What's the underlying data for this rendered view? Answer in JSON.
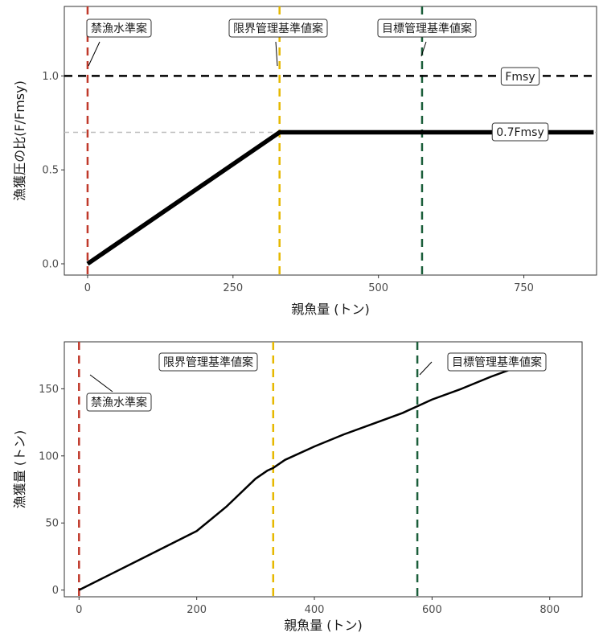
{
  "chart_data": [
    {
      "type": "line",
      "xlabel": "親魚量 (トン)",
      "ylabel": "漁獲圧の比(F/Fmsy)",
      "xlim": [
        -40,
        875
      ],
      "ylim": [
        -0.06,
        1.37
      ],
      "x_ticks": [
        0,
        250,
        500,
        750
      ],
      "y_ticks": [
        0.0,
        0.5,
        1.0
      ],
      "x_tick_labels": [
        "0",
        "250",
        "500",
        "750"
      ],
      "y_tick_labels": [
        "0.0",
        "0.5",
        "1.0"
      ],
      "grid": false,
      "series": [
        {
          "x": [
            0,
            330,
            870
          ],
          "y": [
            0.0,
            0.7,
            0.7
          ],
          "color": "#000000"
        }
      ],
      "reference_lines": [
        {
          "axis": "x",
          "value": 0,
          "color": "#c0392b",
          "label": "禁漁水準案"
        },
        {
          "axis": "x",
          "value": 330,
          "color": "#e6b800",
          "label": "限界管理基準値案"
        },
        {
          "axis": "x",
          "value": 575,
          "color": "#1b5e3a",
          "label": "目標管理基準値案"
        },
        {
          "axis": "y",
          "value": 1.0,
          "color": "#000000",
          "label": "Fmsy"
        },
        {
          "axis": "y",
          "value": 0.7,
          "color": "#bbbbbb",
          "label": "0.7Fmsy"
        }
      ]
    },
    {
      "type": "line",
      "xlabel": "親魚量 (トン)",
      "ylabel": "漁獲量 (トン)",
      "xlim": [
        -25,
        855
      ],
      "ylim": [
        -5,
        185
      ],
      "x_ticks": [
        0,
        200,
        400,
        600,
        800
      ],
      "y_ticks": [
        0,
        50,
        100,
        150
      ],
      "x_tick_labels": [
        "0",
        "200",
        "400",
        "600",
        "800"
      ],
      "y_tick_labels": [
        "0",
        "50",
        "100",
        "150"
      ],
      "grid": false,
      "series": [
        {
          "x": [
            0,
            50,
            100,
            150,
            200,
            250,
            300,
            320,
            330,
            350,
            400,
            450,
            500,
            550,
            575,
            600,
            650,
            700,
            750
          ],
          "y": [
            0,
            11,
            22,
            33,
            44,
            62,
            83,
            89,
            91,
            97,
            107,
            116,
            124,
            132,
            137,
            142,
            150,
            159,
            167
          ],
          "color": "#000000"
        }
      ],
      "reference_lines": [
        {
          "axis": "x",
          "value": 0,
          "color": "#c0392b",
          "label": "禁漁水準案"
        },
        {
          "axis": "x",
          "value": 330,
          "color": "#e6b800",
          "label": "限界管理基準値案"
        },
        {
          "axis": "x",
          "value": 575,
          "color": "#1b5e3a",
          "label": "目標管理基準値案"
        }
      ]
    }
  ]
}
